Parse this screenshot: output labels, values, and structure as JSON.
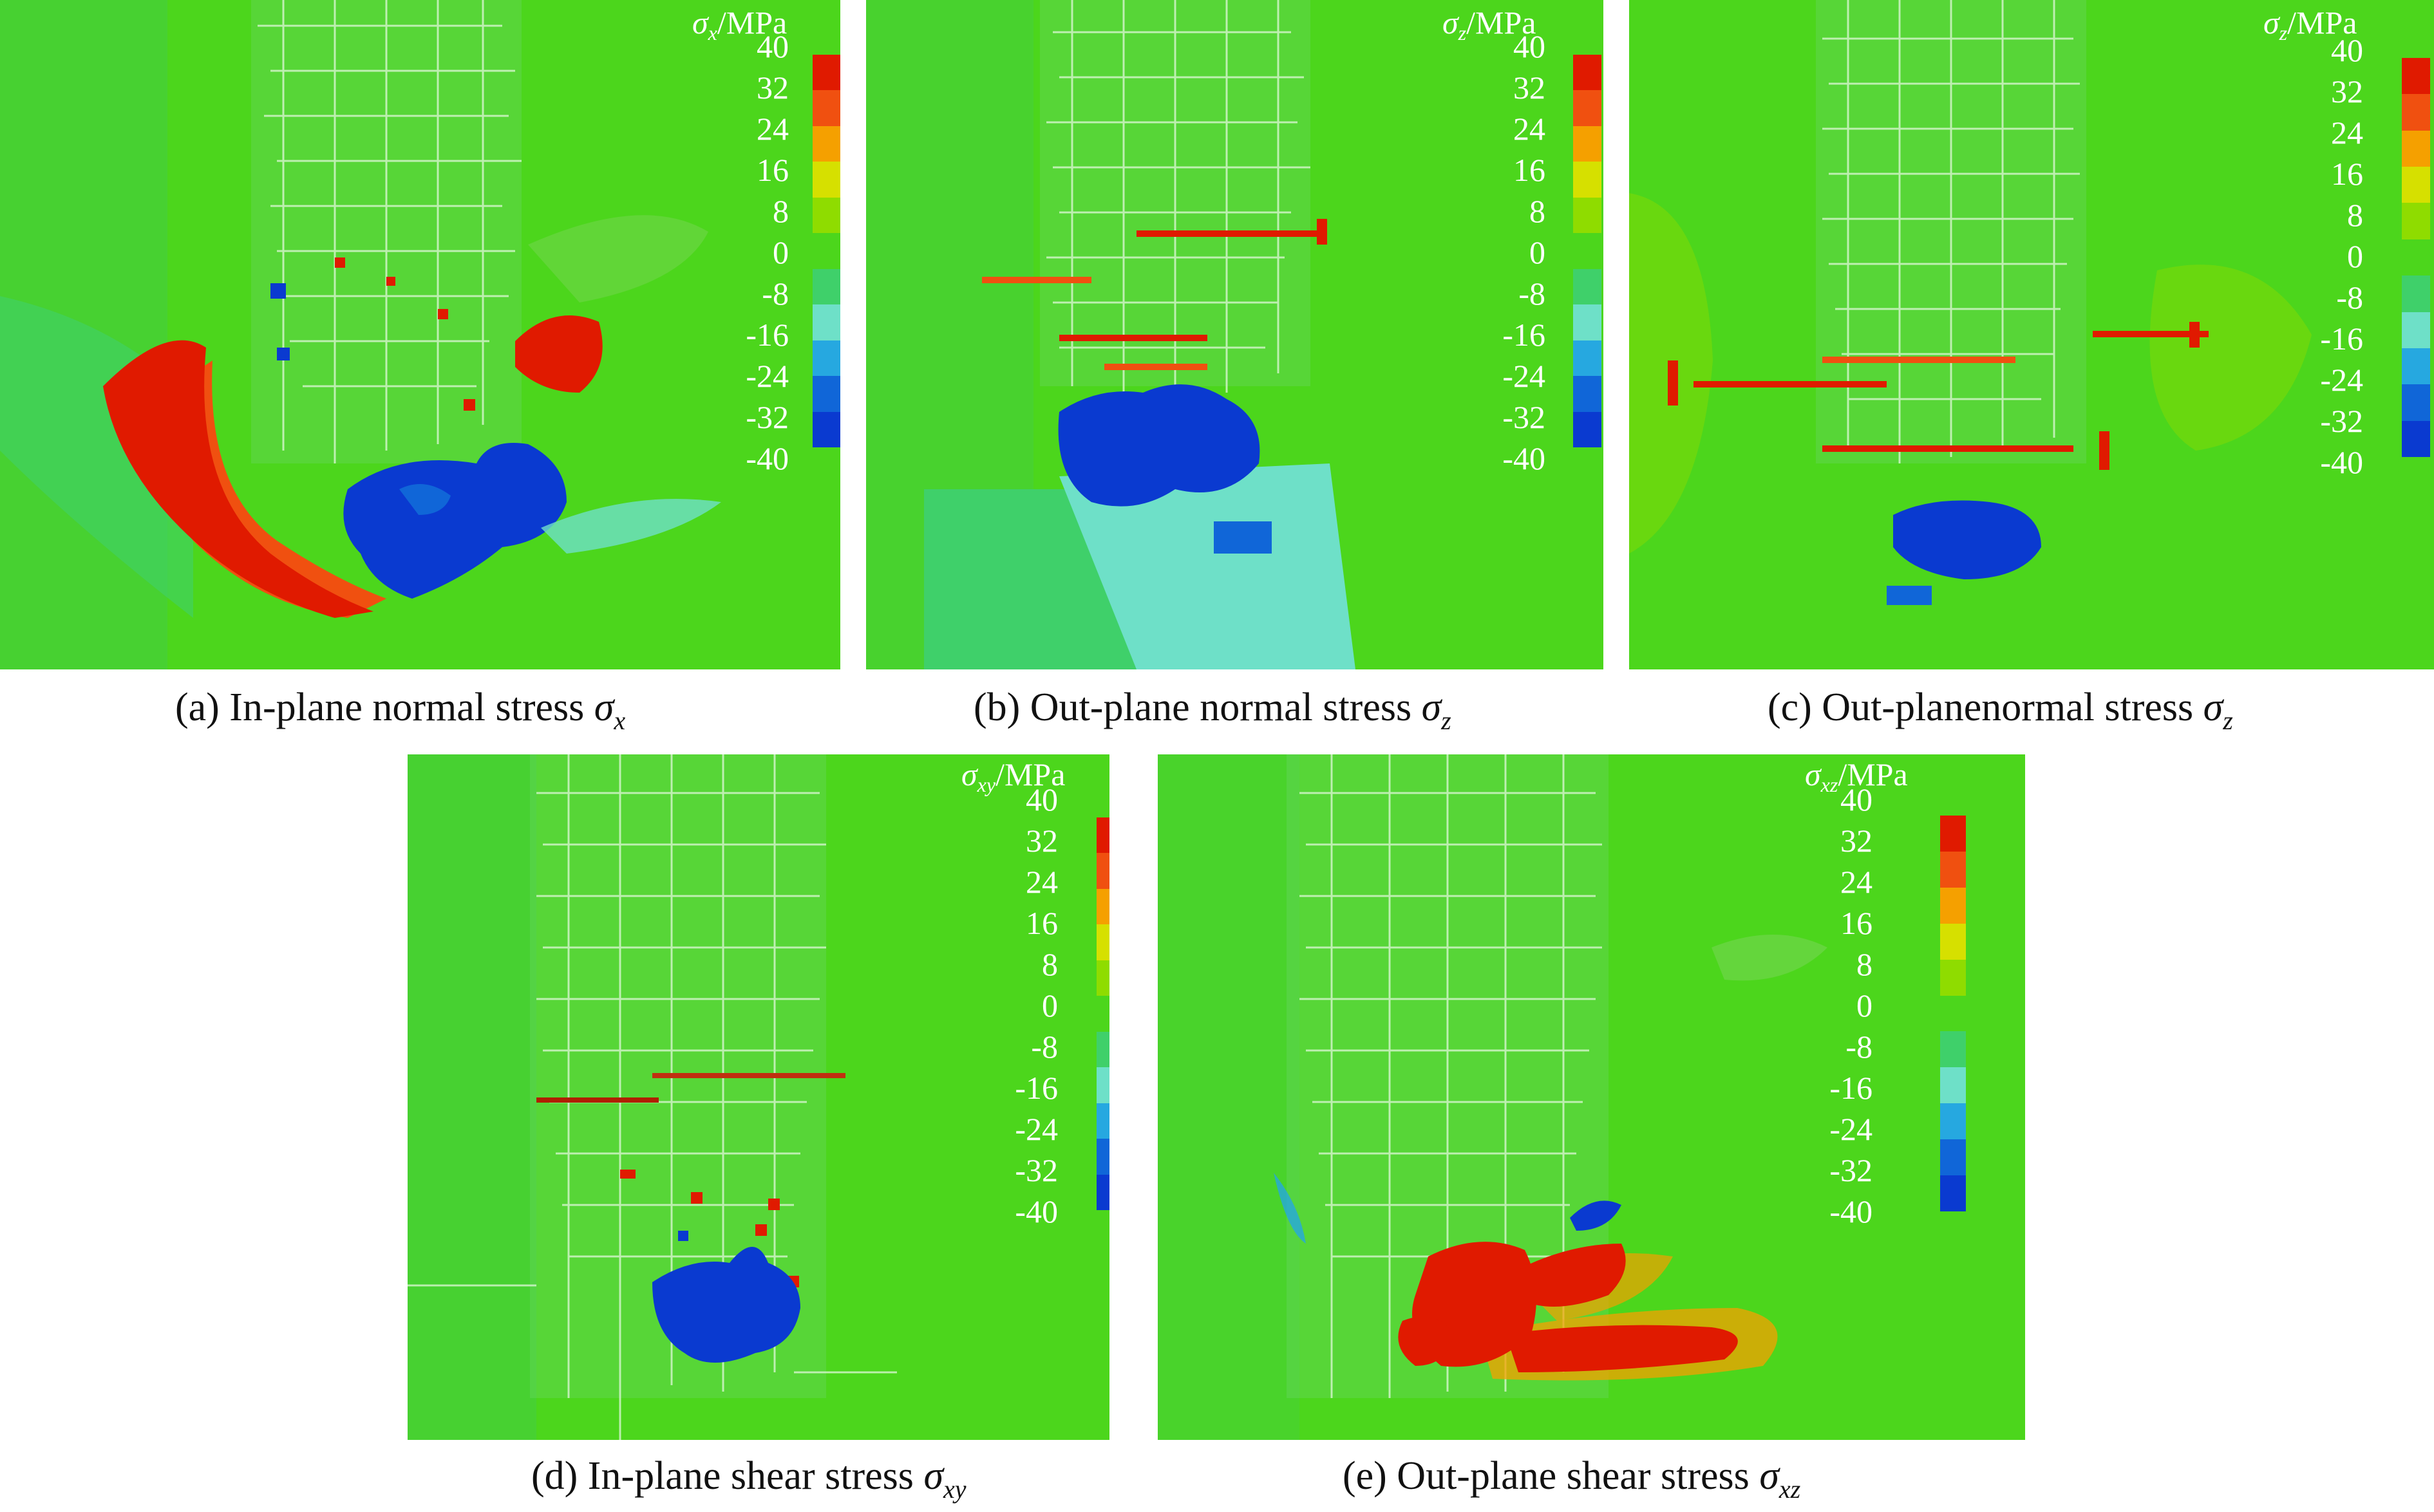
{
  "colorbar": {
    "ticks": [
      "40",
      "32",
      "24",
      "16",
      "8",
      "0",
      "-8",
      "-16",
      "-24",
      "-32",
      "-40"
    ],
    "colors": [
      "#e01a00",
      "#f05010",
      "#f5a000",
      "#d6e000",
      "#8fdc00",
      "#4cd61c",
      "#3fd06a",
      "#6ee0c8",
      "#26a8e0",
      "#1066d8",
      "#0a3ad0"
    ],
    "unit": "/MPa"
  },
  "panels": [
    {
      "id": "a",
      "caption": "(a) In-plane normal stress ",
      "symbol": "σ",
      "sub": "x",
      "cb_symbol": "σ",
      "cb_sub": "x"
    },
    {
      "id": "b",
      "caption": "(b) Out-plane normal stress ",
      "symbol": "σ",
      "sub": "z",
      "cb_symbol": "σ",
      "cb_sub": "z"
    },
    {
      "id": "c",
      "caption": "(c) Out-planenormal stress ",
      "symbol": "σ",
      "sub": "z",
      "cb_symbol": "σ",
      "cb_sub": "z"
    },
    {
      "id": "d",
      "caption": "(d) In-plane shear stress ",
      "symbol": "σ",
      "sub": "xy",
      "cb_symbol": "σ",
      "cb_sub": "xy"
    },
    {
      "id": "e",
      "caption": "(e) Out-plane shear stress ",
      "symbol": "σ",
      "sub": "xz",
      "cb_symbol": "σ",
      "cb_sub": "xz"
    }
  ]
}
